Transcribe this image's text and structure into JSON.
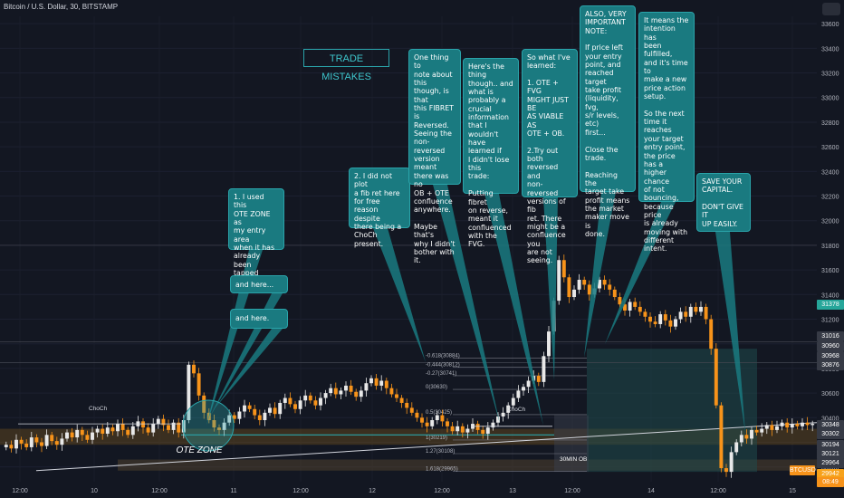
{
  "header": {
    "symbol_line": "Bitcoin / U.S. Dollar, 30, BITSTAMP"
  },
  "title_box": "TRADE MISTAKES",
  "ote_label": "OTE ZONE",
  "choch_labels": [
    "ChoCh",
    "ChoCh"
  ],
  "ob_label": "30MIN OB",
  "fib_levels": [
    {
      "label": "-0.618(30884)",
      "price": 30884
    },
    {
      "label": "-0.444(30812)",
      "price": 30812
    },
    {
      "label": "-0.27(30741)",
      "price": 30741
    },
    {
      "label": "0(30630)",
      "price": 30630
    },
    {
      "label": "0.5(30425)",
      "price": 30425
    },
    {
      "label": "1(30219)",
      "price": 30219
    },
    {
      "label": "1.27(30108)",
      "price": 30108
    },
    {
      "label": "1.618(29965)",
      "price": 29965
    }
  ],
  "notes": [
    {
      "id": "note-1",
      "text": "1. I used this\nOTE ZONE as\nmy entry area\nwhen it has\nalready been\ntapped here..."
    },
    {
      "id": "note-here1",
      "text": "and here..."
    },
    {
      "id": "note-here2",
      "text": "and here."
    },
    {
      "id": "note-2",
      "text": "2. I did not plot\na fib ret here\nfor free\nreason despite\nthere being a\nChoCh present."
    },
    {
      "id": "note-3",
      "text": "One thing to\nnote about this\nthough, is that\nthis FIBRET is\nReversed.\nSeeing the non-\nreversed\nversion meant\nthere was no\nOB + OTE\nconfluence\nanywhere.\n\nMaybe that's\nwhy I didn't\nbother with it."
    },
    {
      "id": "note-4",
      "text": "Here's the thing\nthough.. and\nwhat is\nprobably a\ncrucial\ninformation\nthat I wouldn't\nhave learned if\nI didn't lose this\ntrade:\n\nPutting fibret\non reverse,\nmeant it\nconfluenced\nwith the FVG."
    },
    {
      "id": "note-5",
      "text": "So what I've\nlearned:\n\n1. OTE + FVG\nMIGHT JUST BE\nAS VIABLE AS\nOTE + OB.\n\n2.Try out both\nreversed and\nnon-reversed\nversions of fib\nret. There\nmight be a\nconfluence you\nare not seeing."
    },
    {
      "id": "note-6",
      "text": "ALSO, VERY\nIMPORTANT\nNOTE:\n\nIf price left\nyour entry\npoint, and\nreached target\ntake profit\n(liquidity, fvg,\ns/r levels, etc)\nfirst...\n\nClose the\ntrade.\n\nReaching the\ntarget take\nprofit means\nthe market\nmaker move is\ndone."
    },
    {
      "id": "note-7",
      "text": "It means the\nintention has\nbeen fulfilled,\nand it's time to\nmake a new\nprice action\nsetup.\n\nSo the next\ntime it reaches\nyour target\nentry point,\nthe price has a\nhigher chance\nof not\nbouncing,\nbecause price\nis already\nmoving with\ndifferent\nintent."
    },
    {
      "id": "note-8",
      "text": "SAVE YOUR\nCAPITAL.\n\nDON'T GIVE IT\nUP EASILY."
    }
  ],
  "price_tags": [
    {
      "label": "31378",
      "color": "#26a69a"
    },
    {
      "label": "31016",
      "color": "#363a45"
    },
    {
      "label": "30960",
      "color": "#363a45"
    },
    {
      "label": "30968",
      "color": "#363a45"
    },
    {
      "label": "30876",
      "color": "#363a45"
    },
    {
      "label": "30348",
      "color": "#363a45"
    },
    {
      "label": "30302",
      "color": "#363a45"
    },
    {
      "label": "30194",
      "color": "#363a45"
    },
    {
      "label": "30121",
      "color": "#363a45"
    },
    {
      "label": "29964",
      "color": "#363a45"
    },
    {
      "label": "29942",
      "color": "#f7a21b"
    }
  ],
  "btcusd_tag": "BTCUSD",
  "countdown_tag": "08:49",
  "colors": {
    "bg": "#131722",
    "up": "#e8e8e8",
    "down": "#f7931a",
    "teal": "#1a7a80",
    "zone": "#6b4e1f"
  },
  "chart_data": {
    "type": "candlestick",
    "title": "Bitcoin / U.S. Dollar, 30, BITSTAMP",
    "ylim": [
      29880,
      33660
    ],
    "y_ticks": [
      30000,
      30200,
      30400,
      30600,
      30800,
      31000,
      31200,
      31400,
      31600,
      31800,
      32000,
      32200,
      32400,
      32600,
      32800,
      33000,
      33200,
      33400,
      33600
    ],
    "x_ticks": [
      "12:00",
      "10",
      "12:00",
      "11",
      "12:00",
      "12",
      "12:00",
      "13",
      "12:00",
      "14",
      "12:00",
      "15"
    ],
    "close_series": [
      30180,
      30150,
      30220,
      30190,
      30160,
      30240,
      30200,
      30170,
      30260,
      30210,
      30180,
      30230,
      30280,
      30240,
      30300,
      30260,
      30220,
      30280,
      30310,
      30270,
      30320,
      30290,
      30350,
      30300,
      30260,
      30330,
      30370,
      30320,
      30280,
      30350,
      30390,
      30340,
      30300,
      30360,
      30280,
      30380,
      30830,
      30760,
      30580,
      30440,
      30380,
      30320,
      30300,
      30360,
      30420,
      30390,
      30450,
      30500,
      30470,
      30420,
      30380,
      30440,
      30480,
      30430,
      30520,
      30560,
      30510,
      30470,
      30540,
      30580,
      30540,
      30500,
      30560,
      30600,
      30640,
      30590,
      30620,
      30660,
      30610,
      30570,
      30620,
      30680,
      30720,
      30660,
      30700,
      30640,
      30590,
      30560,
      30520,
      30480,
      30440,
      30400,
      30360,
      30330,
      30380,
      30420,
      30370,
      30330,
      30290,
      30330,
      30280,
      30310,
      30350,
      30300,
      30270,
      30320,
      30360,
      30410,
      30440,
      30500,
      30560,
      30620,
      30650,
      30700,
      30740,
      30690,
      30900,
      31100,
      31350,
      31680,
      31540,
      31380,
      31440,
      31520,
      31480,
      31400,
      31450,
      31520,
      31480,
      31440,
      31380,
      31320,
      31270,
      31340,
      31300,
      31260,
      31220,
      31180,
      31160,
      31240,
      31190,
      31140,
      31200,
      31260,
      31220,
      31300,
      31260,
      31300,
      31200,
      30960,
      30500,
      29990,
      29960,
      30120,
      30200,
      30260,
      30230,
      30300,
      30280,
      30310,
      30340,
      30300,
      30330,
      30360,
      30320,
      30350,
      30330,
      30360,
      30340,
      30350
    ],
    "zones": [
      {
        "name": "OTE zone",
        "from": 30180,
        "to": 30310
      },
      {
        "name": "30MIN OB",
        "from": 29970,
        "to": 30060
      }
    ]
  }
}
